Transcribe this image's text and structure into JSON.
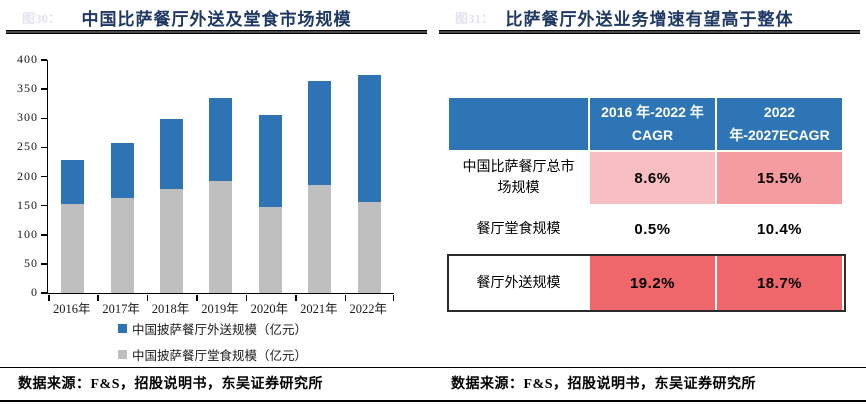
{
  "panels": {
    "left": {
      "fig_label": "图30：",
      "title": "中国比萨餐厅外送及堂食市场规模",
      "source": "数据来源：F&S，招股说明书，东吴证券研究所"
    },
    "right": {
      "fig_label": "图31：",
      "title": "比萨餐厅外送业务增速有望高于整体",
      "source": "数据来源：F&S，招股说明书，东吴证券研究所"
    }
  },
  "colors": {
    "title_navy": "#1F3864",
    "bar_blue": "#2E74B5",
    "bar_gray": "#BFBFBF",
    "table_header_blue": "#2E75B6",
    "pink_light": "#F8BFC2",
    "pink_mid": "#F49CA0",
    "red": "#F0676B"
  },
  "chart_data": [
    {
      "type": "bar",
      "stacked": true,
      "title": "中国比萨餐厅外送及堂食市场规模",
      "categories": [
        "2016年",
        "2017年",
        "2018年",
        "2019年",
        "2020年",
        "2021年",
        "2022年"
      ],
      "series": [
        {
          "name": "中国披萨餐厅外送规模（亿元）",
          "color": "#2E74B5",
          "values": [
            76,
            95,
            119,
            142,
            158,
            179,
            219
          ]
        },
        {
          "name": "中国披萨餐厅堂食规模（亿元）",
          "color": "#BFBFBF",
          "values": [
            152,
            163,
            179,
            193,
            147,
            185,
            156
          ]
        }
      ],
      "totals": [
        228,
        258,
        298,
        335,
        305,
        364,
        375
      ],
      "xlabel": "",
      "ylabel": "",
      "ylim": [
        0,
        400
      ],
      "ytick_step": 50,
      "grid": false,
      "legend_position": "bottom"
    },
    {
      "type": "table",
      "title": "比萨餐厅外送业务增速有望高于整体",
      "columns": [
        "",
        "2016 年-2022 年 CAGR",
        "2022 年-2027ECAGR"
      ],
      "rows": [
        {
          "label": "中国比萨餐厅总市场规模",
          "values": [
            "8.6%",
            "15.5%"
          ],
          "value_colors": [
            "#F8BFC2",
            "#F49CA0"
          ],
          "highlight_border": false
        },
        {
          "label": "餐厅堂食规模",
          "values": [
            "0.5%",
            "10.4%"
          ],
          "value_colors": [
            "#FFFFFF",
            "#FFFFFF"
          ],
          "highlight_border": false
        },
        {
          "label": "餐厅外送规模",
          "values": [
            "19.2%",
            "18.7%"
          ],
          "value_colors": [
            "#F0676B",
            "#F0676B"
          ],
          "highlight_border": true
        }
      ]
    }
  ]
}
